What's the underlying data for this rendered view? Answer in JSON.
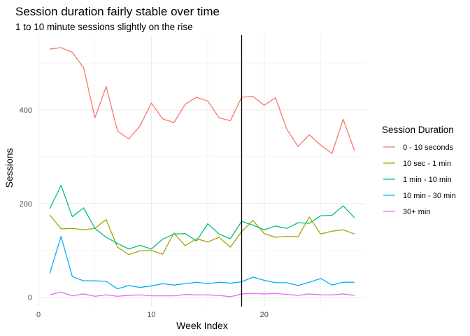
{
  "chart_data": {
    "type": "line",
    "title": "Session duration fairly stable over time",
    "subtitle": "1 to 10 minute sessions slightly on the rise",
    "xlabel": "Week Index",
    "ylabel": "Sessions",
    "xlim": [
      0,
      29
    ],
    "ylim": [
      -20,
      560
    ],
    "x_ticks": [
      0,
      10,
      20
    ],
    "y_ticks": [
      0,
      200,
      400
    ],
    "x_minor": [
      5,
      15,
      25
    ],
    "y_minor": [
      100,
      300,
      500
    ],
    "grid": true,
    "vline_x": 18,
    "legend": {
      "title": "Session Duration",
      "position": "right"
    },
    "x": [
      1,
      2,
      3,
      4,
      5,
      6,
      7,
      8,
      9,
      10,
      11,
      12,
      13,
      14,
      15,
      16,
      17,
      18,
      19,
      20,
      21,
      22,
      23,
      24,
      25,
      26,
      27,
      28
    ],
    "series": [
      {
        "name": "0 - 10 seconds",
        "color": "#F8766D",
        "values": [
          530,
          533,
          523,
          490,
          383,
          450,
          355,
          338,
          366,
          415,
          381,
          373,
          412,
          427,
          419,
          383,
          377,
          427,
          429,
          410,
          426,
          359,
          322,
          347,
          325,
          307,
          380,
          313
        ]
      },
      {
        "name": "10 sec - 1 min",
        "color": "#A3A500",
        "values": [
          176,
          146,
          147,
          144,
          147,
          166,
          107,
          91,
          99,
          100,
          92,
          137,
          110,
          125,
          118,
          128,
          107,
          140,
          164,
          136,
          128,
          130,
          129,
          171,
          135,
          141,
          144,
          135
        ]
      },
      {
        "name": "1 min - 10 min",
        "color": "#00BF7D",
        "values": [
          189,
          239,
          172,
          191,
          147,
          128,
          115,
          103,
          111,
          103,
          124,
          135,
          136,
          120,
          157,
          135,
          125,
          162,
          154,
          144,
          152,
          147,
          159,
          158,
          174,
          175,
          195,
          170
        ]
      },
      {
        "name": "10 min - 30 min",
        "color": "#00B0F6",
        "values": [
          51,
          130,
          44,
          35,
          35,
          34,
          18,
          25,
          21,
          24,
          29,
          26,
          29,
          32,
          29,
          32,
          30,
          33,
          43,
          36,
          31,
          31,
          25,
          32,
          40,
          26,
          32,
          32
        ]
      },
      {
        "name": "30+ min",
        "color": "#E76BF3",
        "values": [
          5,
          11,
          3,
          7,
          2,
          5,
          2,
          4,
          5,
          3,
          3,
          3,
          6,
          5,
          5,
          4,
          1,
          7,
          8,
          7,
          8,
          6,
          4,
          7,
          5,
          5,
          7,
          4
        ]
      }
    ]
  }
}
